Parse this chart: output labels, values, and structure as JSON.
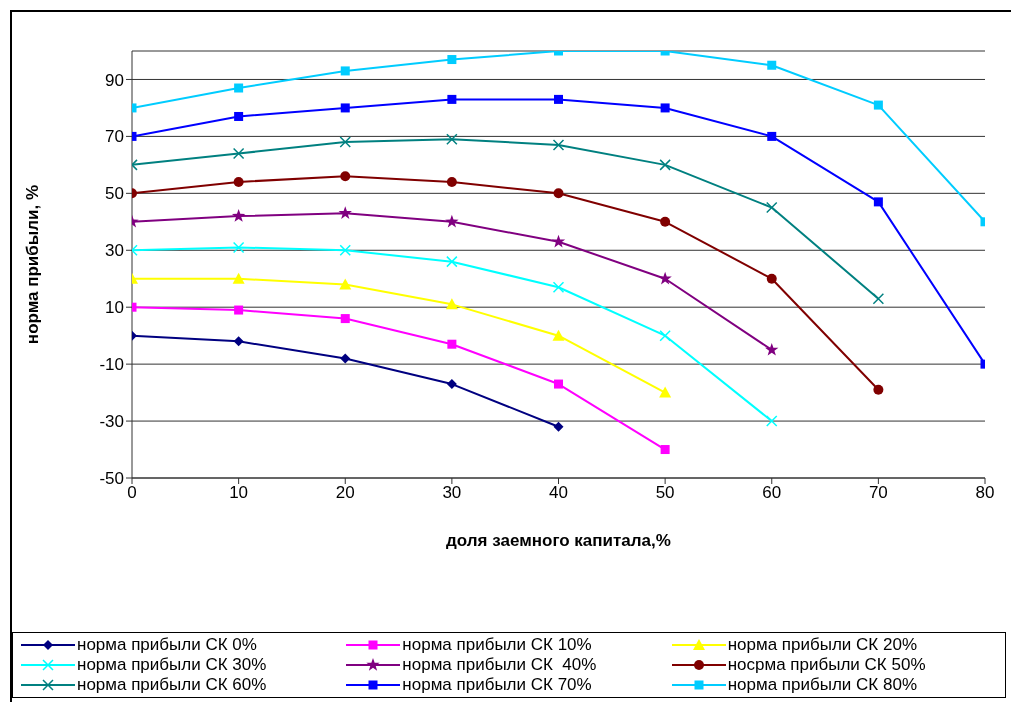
{
  "chart_data": {
    "type": "line",
    "xlabel": "доля заемного капитала,%",
    "ylabel": "норма прибыли, %",
    "x": [
      0,
      10,
      20,
      30,
      40,
      50,
      60,
      70,
      80
    ],
    "xlim": [
      0,
      80
    ],
    "xticks": [
      0,
      10,
      20,
      30,
      40,
      50,
      60,
      70,
      80
    ],
    "ylim": [
      -50,
      100
    ],
    "yticks": [
      -50,
      -30,
      -10,
      10,
      30,
      50,
      70,
      90
    ],
    "grid": "y",
    "legend": "bottom",
    "series": [
      {
        "name": "норма прибыли СК 0%",
        "color": "#000080",
        "marker": "diamond",
        "values": [
          0,
          -2,
          -8,
          -17,
          -32,
          null,
          null,
          null,
          null
        ]
      },
      {
        "name": "норма прибыли СК 10%",
        "color": "#ff00ff",
        "marker": "square",
        "values": [
          10,
          9,
          6,
          -3,
          -17,
          -40,
          null,
          null,
          null
        ]
      },
      {
        "name": "норма прибыли СК 20%",
        "color": "#ffff00",
        "marker": "triangle",
        "values": [
          20,
          20,
          18,
          11,
          0,
          -20,
          null,
          null,
          null
        ]
      },
      {
        "name": "норма прибыли СК 30%",
        "color": "#00ffff",
        "marker": "cross",
        "values": [
          30,
          31,
          30,
          26,
          17,
          0,
          -30,
          null,
          null
        ]
      },
      {
        "name": "норма прибыли СК  40%",
        "color": "#800080",
        "marker": "star",
        "values": [
          40,
          42,
          43,
          40,
          33,
          20,
          -5,
          null,
          null
        ]
      },
      {
        "name": "носрма прибыли СК 50%",
        "color": "#800000",
        "marker": "circle",
        "values": [
          50,
          54,
          56,
          54,
          50,
          40,
          20,
          -19,
          null
        ]
      },
      {
        "name": "норма прибыли СК 60%",
        "color": "#008080",
        "marker": "cross",
        "values": [
          60,
          64,
          68,
          69,
          67,
          60,
          45,
          13,
          null
        ]
      },
      {
        "name": "норма прибыли СК 70%",
        "color": "#0000ff",
        "marker": "square",
        "values": [
          70,
          77,
          80,
          83,
          83,
          80,
          70,
          47,
          -10
        ]
      },
      {
        "name": "норма прибыли СК 80%",
        "color": "#00ccff",
        "marker": "square",
        "values": [
          80,
          87,
          93,
          97,
          100,
          100,
          95,
          81,
          40
        ]
      }
    ]
  }
}
